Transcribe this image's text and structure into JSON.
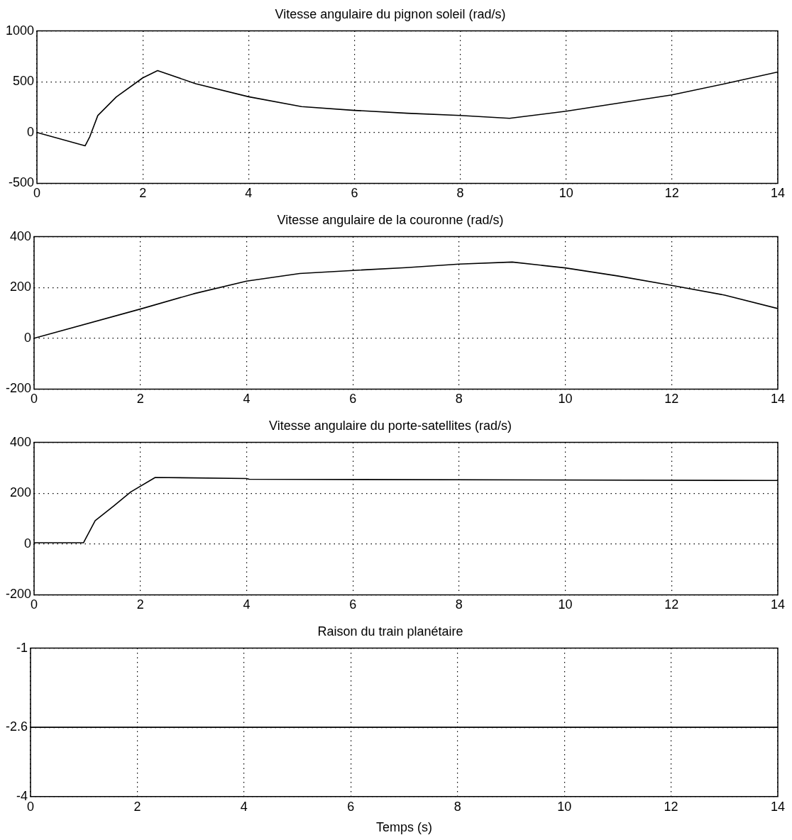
{
  "chart_data": [
    {
      "type": "line",
      "title": "Vitesse angulaire du pignon soleil (rad/s)",
      "x": [
        0,
        0.91,
        1.0,
        1.15,
        1.5,
        2.0,
        2.28,
        3,
        4,
        5,
        6,
        7,
        8,
        8.93,
        10,
        11,
        12,
        13,
        14
      ],
      "values": [
        0,
        -131,
        -40,
        167,
        350,
        538,
        610,
        480,
        352,
        255,
        218,
        190,
        168,
        140,
        210,
        290,
        370,
        480,
        596
      ],
      "color": "#000000",
      "xlim": [
        0,
        14
      ],
      "xticks": [
        0,
        2,
        4,
        6,
        8,
        10,
        12,
        14
      ],
      "ylim": [
        -500,
        1000
      ],
      "yticks": [
        -500,
        0,
        500,
        1000
      ],
      "grid": true
    },
    {
      "type": "line",
      "title": "Vitesse angulaire de la couronne (rad/s)",
      "x": [
        0,
        2,
        3,
        4,
        5,
        6,
        7,
        8,
        9,
        10,
        11,
        12,
        13,
        14
      ],
      "values": [
        0,
        115,
        175,
        225,
        255,
        267,
        278,
        292,
        300,
        277,
        245,
        208,
        170,
        117
      ],
      "color": "#000000",
      "xlim": [
        0,
        14
      ],
      "xticks": [
        0,
        2,
        4,
        6,
        8,
        10,
        12,
        14
      ],
      "ylim": [
        -200,
        400
      ],
      "yticks": [
        -200,
        0,
        200,
        400
      ],
      "grid": true
    },
    {
      "type": "line",
      "title": "Vitesse angulaire du porte-satellites (rad/s)",
      "x": [
        0,
        0.93,
        1.15,
        1.5,
        1.82,
        2.28,
        4,
        4.05,
        14
      ],
      "values": [
        5,
        5,
        92,
        150,
        205,
        262,
        258,
        255,
        250
      ],
      "color": "#000000",
      "xlim": [
        0,
        14
      ],
      "xticks": [
        0,
        2,
        4,
        6,
        8,
        10,
        12,
        14
      ],
      "ylim": [
        -200,
        400
      ],
      "yticks": [
        -200,
        0,
        200,
        400
      ],
      "grid": true
    },
    {
      "type": "line",
      "title": "Raison du train planétaire",
      "xlabel": "Temps (s)",
      "x": [
        0,
        14
      ],
      "values": [
        -2.6,
        -2.6
      ],
      "color": "#000000",
      "xlim": [
        0,
        14
      ],
      "xticks": [
        0,
        2,
        4,
        6,
        8,
        10,
        12,
        14
      ],
      "ylim": [
        -4,
        -1
      ],
      "yticks": [
        -4,
        -2.6,
        -1
      ],
      "grid": true
    }
  ]
}
